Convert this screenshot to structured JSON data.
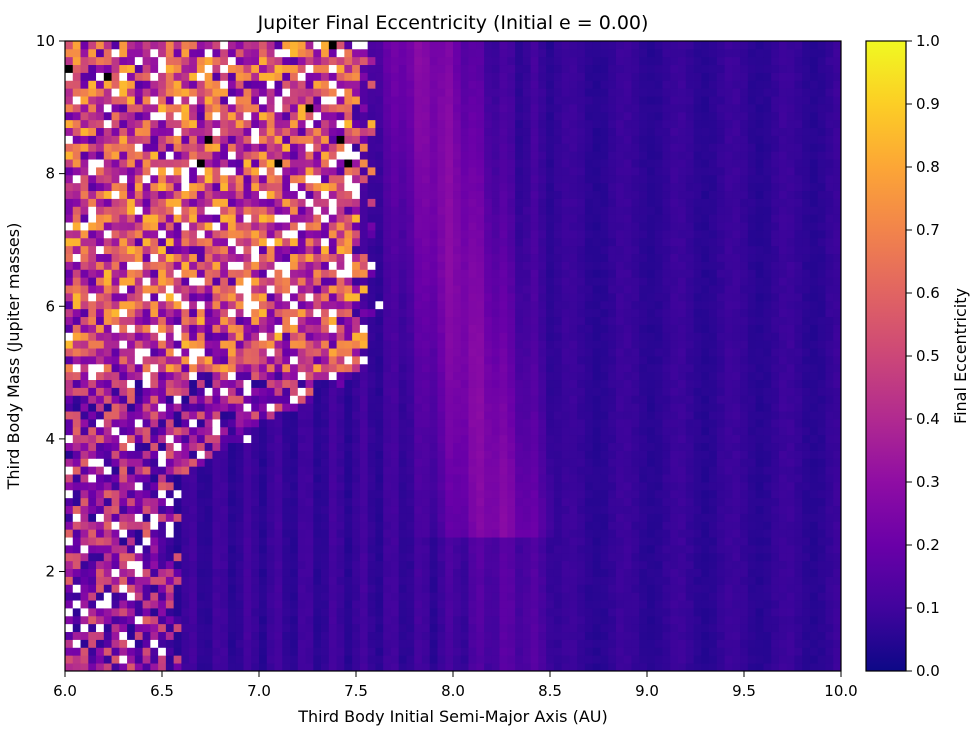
{
  "chart_data": {
    "type": "heatmap",
    "title": "Jupiter Final Eccentricity (Initial e = 0.00)",
    "xlabel": "Third Body Initial Semi-Major Axis (AU)",
    "ylabel": "Third Body Mass (Jupiter masses)",
    "xlim": [
      6.0,
      10.0
    ],
    "ylim": [
      0.5,
      10.0
    ],
    "xticks": [
      "6.0",
      "6.5",
      "7.0",
      "7.5",
      "8.0",
      "8.5",
      "9.0",
      "9.5",
      "10.0"
    ],
    "yticks": [
      "2",
      "4",
      "6",
      "8",
      "10"
    ],
    "grid": false,
    "colormap": "plasma",
    "colorbar": {
      "label": "Final Eccentricity",
      "range": [
        0.0,
        1.0
      ],
      "ticks": [
        "0.0",
        "0.1",
        "0.2",
        "0.3",
        "0.4",
        "0.5",
        "0.6",
        "0.7",
        "0.8",
        "0.9",
        "1.0"
      ]
    },
    "missing_value_color": "#ffffff",
    "grid_size": {
      "nx": 100,
      "ny": 80
    },
    "regions": [
      {
        "description_x_range": [
          6.0,
          7.6
        ],
        "y_range": [
          5.0,
          10.0
        ],
        "typical_e": [
          0.1,
          0.9
        ],
        "pattern": "chaotic, with unbound (white) cells"
      },
      {
        "description_x_range": [
          6.0,
          6.6
        ],
        "y_range": [
          0.5,
          5.0
        ],
        "typical_e": [
          0.05,
          0.6
        ],
        "pattern": "chaotic, with unbound (white) cells"
      },
      {
        "description_x_range": [
          7.6,
          8.6
        ],
        "y_range": [
          2.5,
          10.0
        ],
        "typical_e": [
          0.15,
          0.3
        ],
        "pattern": "smooth resonance band"
      },
      {
        "description_x_range": [
          8.0,
          10.0
        ],
        "y_range": [
          0.5,
          10.0
        ],
        "typical_e": [
          0.0,
          0.15
        ],
        "pattern": "smooth, low eccentricity"
      }
    ]
  }
}
